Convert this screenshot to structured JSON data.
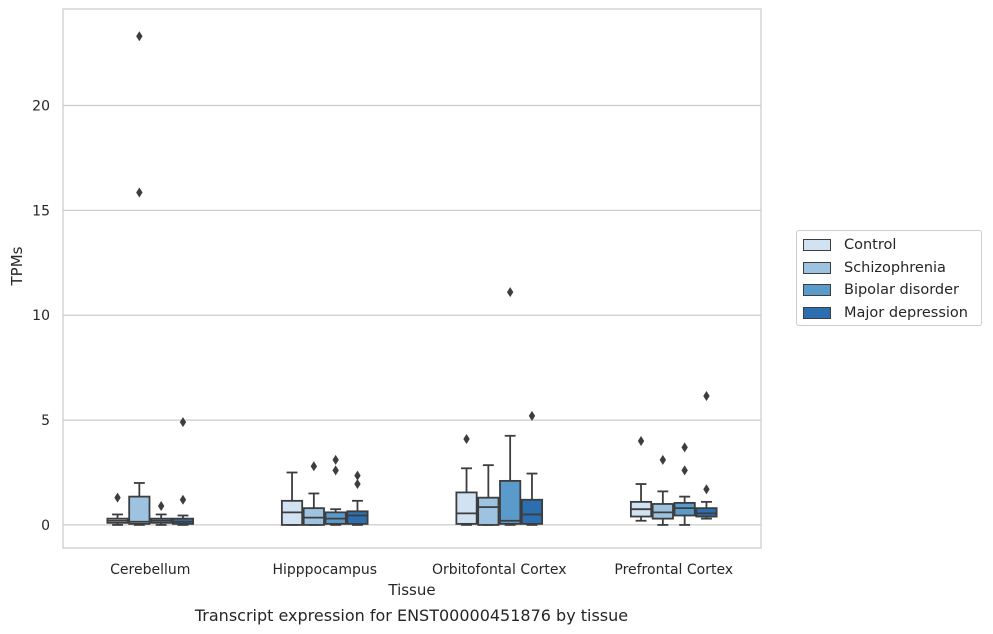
{
  "caption": "Transcript expression for ENST00000451876 by tissue",
  "chart_data": {
    "type": "box",
    "xlabel": "Tissue",
    "ylabel": "TPMs",
    "ylim": [
      -1.1,
      24.6
    ],
    "yticks": [
      0,
      5,
      10,
      15,
      20
    ],
    "grid": "horizontal",
    "legend_position": "right",
    "categories": [
      "Cerebellum",
      "Hipppocampus",
      "Orbitofontal Cortex",
      "Prefrontal Cortex"
    ],
    "series": [
      {
        "name": "Control",
        "color": "#d1e2f2",
        "boxes": [
          {
            "whisker_low": 0.0,
            "q1": 0.1,
            "median": 0.2,
            "q3": 0.3,
            "whisker_high": 0.5,
            "outliers": [
              1.3
            ]
          },
          {
            "whisker_low": 0.0,
            "q1": 0.0,
            "median": 0.6,
            "q3": 1.15,
            "whisker_high": 2.5,
            "outliers": []
          },
          {
            "whisker_low": 0.0,
            "q1": 0.05,
            "median": 0.55,
            "q3": 1.55,
            "whisker_high": 2.7,
            "outliers": [
              4.1
            ]
          },
          {
            "whisker_low": 0.2,
            "q1": 0.4,
            "median": 0.75,
            "q3": 1.1,
            "whisker_high": 1.95,
            "outliers": [
              4.0
            ]
          }
        ]
      },
      {
        "name": "Schizophrenia",
        "color": "#9dc3e0",
        "boxes": [
          {
            "whisker_low": 0.0,
            "q1": 0.05,
            "median": 0.15,
            "q3": 1.35,
            "whisker_high": 2.0,
            "outliers": [
              15.85,
              23.3
            ]
          },
          {
            "whisker_low": 0.0,
            "q1": 0.0,
            "median": 0.35,
            "q3": 0.8,
            "whisker_high": 1.5,
            "outliers": [
              2.8
            ]
          },
          {
            "whisker_low": 0.0,
            "q1": 0.0,
            "median": 0.85,
            "q3": 1.3,
            "whisker_high": 2.85,
            "outliers": []
          },
          {
            "whisker_low": 0.0,
            "q1": 0.3,
            "median": 0.6,
            "q3": 1.0,
            "whisker_high": 1.6,
            "outliers": [
              3.1
            ]
          }
        ]
      },
      {
        "name": "Bipolar disorder",
        "color": "#5a9bcc",
        "boxes": [
          {
            "whisker_low": 0.0,
            "q1": 0.1,
            "median": 0.2,
            "q3": 0.3,
            "whisker_high": 0.5,
            "outliers": [
              0.9
            ]
          },
          {
            "whisker_low": 0.0,
            "q1": 0.05,
            "median": 0.3,
            "q3": 0.6,
            "whisker_high": 0.75,
            "outliers": [
              2.6,
              3.1
            ]
          },
          {
            "whisker_low": 0.0,
            "q1": 0.05,
            "median": 0.2,
            "q3": 2.1,
            "whisker_high": 4.25,
            "outliers": [
              11.1
            ]
          },
          {
            "whisker_low": 0.0,
            "q1": 0.45,
            "median": 0.8,
            "q3": 1.05,
            "whisker_high": 1.35,
            "outliers": [
              2.6,
              3.7
            ]
          }
        ]
      },
      {
        "name": "Major depression",
        "color": "#2c6fb0",
        "boxes": [
          {
            "whisker_low": 0.0,
            "q1": 0.05,
            "median": 0.15,
            "q3": 0.3,
            "whisker_high": 0.45,
            "outliers": [
              1.2,
              4.9
            ]
          },
          {
            "whisker_low": 0.0,
            "q1": 0.05,
            "median": 0.45,
            "q3": 0.65,
            "whisker_high": 1.15,
            "outliers": [
              1.95,
              2.35
            ]
          },
          {
            "whisker_low": 0.0,
            "q1": 0.05,
            "median": 0.5,
            "q3": 1.2,
            "whisker_high": 2.45,
            "outliers": [
              5.2
            ]
          },
          {
            "whisker_low": 0.3,
            "q1": 0.4,
            "median": 0.55,
            "q3": 0.8,
            "whisker_high": 1.1,
            "outliers": [
              1.7,
              6.15
            ]
          }
        ]
      }
    ]
  }
}
